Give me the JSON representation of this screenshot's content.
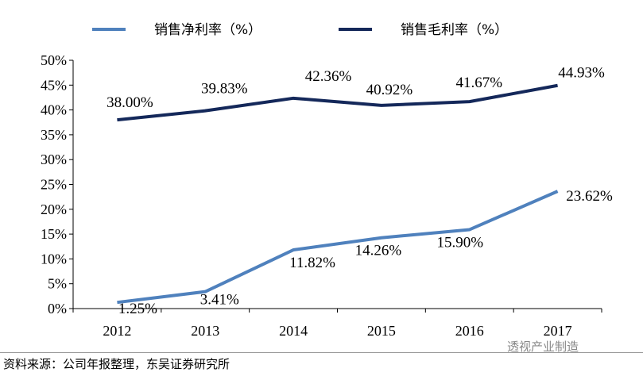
{
  "chart_data": {
    "type": "line",
    "categories": [
      "2012",
      "2013",
      "2014",
      "2015",
      "2016",
      "2017"
    ],
    "series": [
      {
        "name": "销售净利率（%）",
        "values": [
          1.25,
          3.41,
          11.82,
          14.26,
          15.9,
          23.62
        ],
        "labels": [
          "1.25%",
          "3.41%",
          "11.82%",
          "14.26%",
          "15.90%",
          "23.62%"
        ],
        "color": "#4f81bd"
      },
      {
        "name": "销售毛利率（%）",
        "values": [
          38.0,
          39.83,
          42.36,
          40.92,
          41.67,
          44.93
        ],
        "labels": [
          "38.00%",
          "39.83%",
          "42.36%",
          "40.92%",
          "41.67%",
          "44.93%"
        ],
        "color": "#14285a"
      }
    ],
    "ylim": [
      0,
      50
    ],
    "yticks": [
      "0%",
      "5%",
      "10%",
      "15%",
      "20%",
      "25%",
      "30%",
      "35%",
      "40%",
      "45%",
      "50%"
    ],
    "legend_position": "top",
    "grid": false
  },
  "source_text": "资料来源：公司年报整理，东吴证券研究所",
  "watermark_text": "透视产业制造"
}
